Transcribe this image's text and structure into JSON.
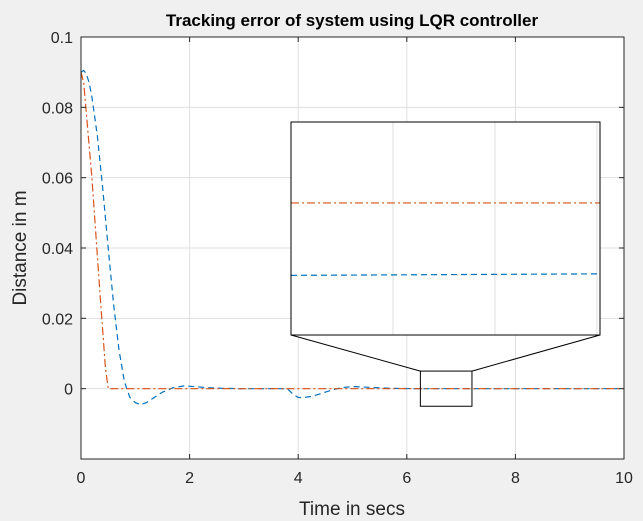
{
  "chart_data": {
    "type": "line",
    "title": "Tracking error of system using LQR controller",
    "xlabel": "Time in secs",
    "ylabel": "Distance in m",
    "xlim": [
      0,
      10
    ],
    "ylim": [
      -0.02,
      0.1
    ],
    "xticks": [
      0,
      2,
      4,
      6,
      8,
      10
    ],
    "xtick_labels": [
      "0",
      "2",
      "4",
      "6",
      "8",
      "10"
    ],
    "yticks": [
      0,
      0.02,
      0.04,
      0.06,
      0.08,
      0.1
    ],
    "ytick_labels": [
      "0",
      "0.02",
      "0.04",
      "0.06",
      "0.08",
      "0.1"
    ],
    "grid": true,
    "series": [
      {
        "style": "dashed",
        "color": "#0072BD",
        "x": [
          0,
          0.05,
          0.1,
          0.15,
          0.2,
          0.3,
          0.4,
          0.5,
          0.6,
          0.7,
          0.8,
          0.9,
          1.0,
          1.1,
          1.2,
          1.3,
          1.4,
          1.5,
          1.7,
          1.9,
          2.1,
          2.3,
          2.6,
          3.0,
          3.5,
          3.8,
          3.9,
          4.0,
          4.1,
          4.25,
          4.4,
          4.6,
          4.8,
          5.0,
          5.3,
          5.7,
          6.2,
          7,
          8,
          9,
          10
        ],
        "y": [
          0.09,
          0.0905,
          0.0895,
          0.087,
          0.083,
          0.072,
          0.057,
          0.04,
          0.024,
          0.011,
          0.002,
          -0.0025,
          -0.004,
          -0.0045,
          -0.004,
          -0.003,
          -0.002,
          -0.001,
          0.0003,
          0.0008,
          0.0006,
          0.0003,
          0.0001,
          0,
          0,
          0,
          -0.0015,
          -0.0025,
          -0.0025,
          -0.0022,
          -0.0015,
          -0.0005,
          0.0003,
          0.0006,
          0.0004,
          0.0001,
          0,
          0,
          0,
          0,
          0
        ]
      },
      {
        "style": "dashdot",
        "color": "#D95319",
        "x": [
          0,
          0.05,
          0.2,
          0.35,
          0.45,
          0.5,
          1,
          2,
          4,
          6,
          8,
          10
        ],
        "y": [
          0.09,
          0.087,
          0.06,
          0.027,
          0.006,
          0,
          0,
          0,
          0,
          0,
          0,
          0
        ]
      }
    ],
    "inset": {
      "source_xlim": [
        6.25,
        7.2
      ],
      "source_ylim": [
        -0.005,
        0.005
      ],
      "series_levels_relative": [
        0.62,
        0.28
      ]
    }
  }
}
